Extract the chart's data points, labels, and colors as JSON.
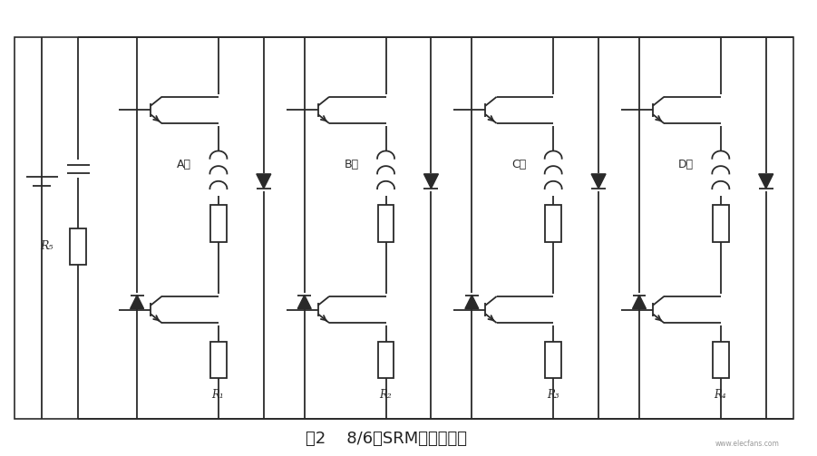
{
  "title": "图2    8/6极SRM电路结构图",
  "title_fontsize": 13,
  "bg_color": "#ffffff",
  "line_color": "#2a2a2a",
  "line_width": 1.3,
  "phase_labels": [
    "A相",
    "B相",
    "C相",
    "D相"
  ],
  "resistor_labels": [
    "R₁",
    "R₂",
    "R₃",
    "R₄"
  ],
  "rs_label": "R₅",
  "fig_width": 9.01,
  "fig_height": 5.03,
  "dpi": 100
}
